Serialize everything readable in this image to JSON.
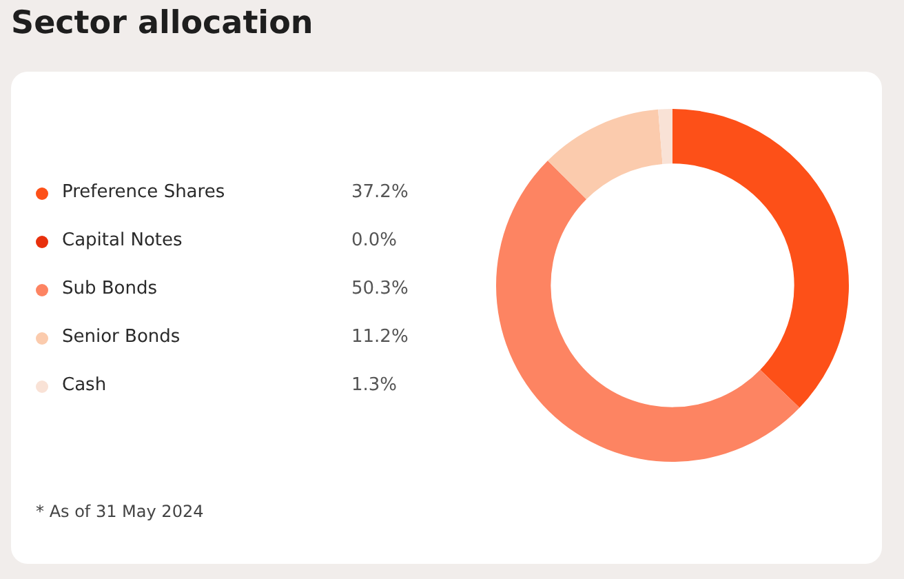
{
  "chart_data": {
    "type": "donut",
    "title": "Sector allocation",
    "categories": [
      "Preference Shares",
      "Capital Notes",
      "Sub Bonds",
      "Senior Bonds",
      "Cash"
    ],
    "values": [
      37.2,
      0.0,
      50.3,
      11.2,
      1.3
    ],
    "colors": [
      "#fd5018",
      "#e8300c",
      "#fd8462",
      "#fbcbad",
      "#f9e2d6"
    ],
    "value_labels": [
      "37.2%",
      "0.0%",
      "50.3%",
      "11.2%",
      "1.3%"
    ],
    "legend": "left",
    "annotations": [
      "* As of 31 May 2024"
    ]
  }
}
